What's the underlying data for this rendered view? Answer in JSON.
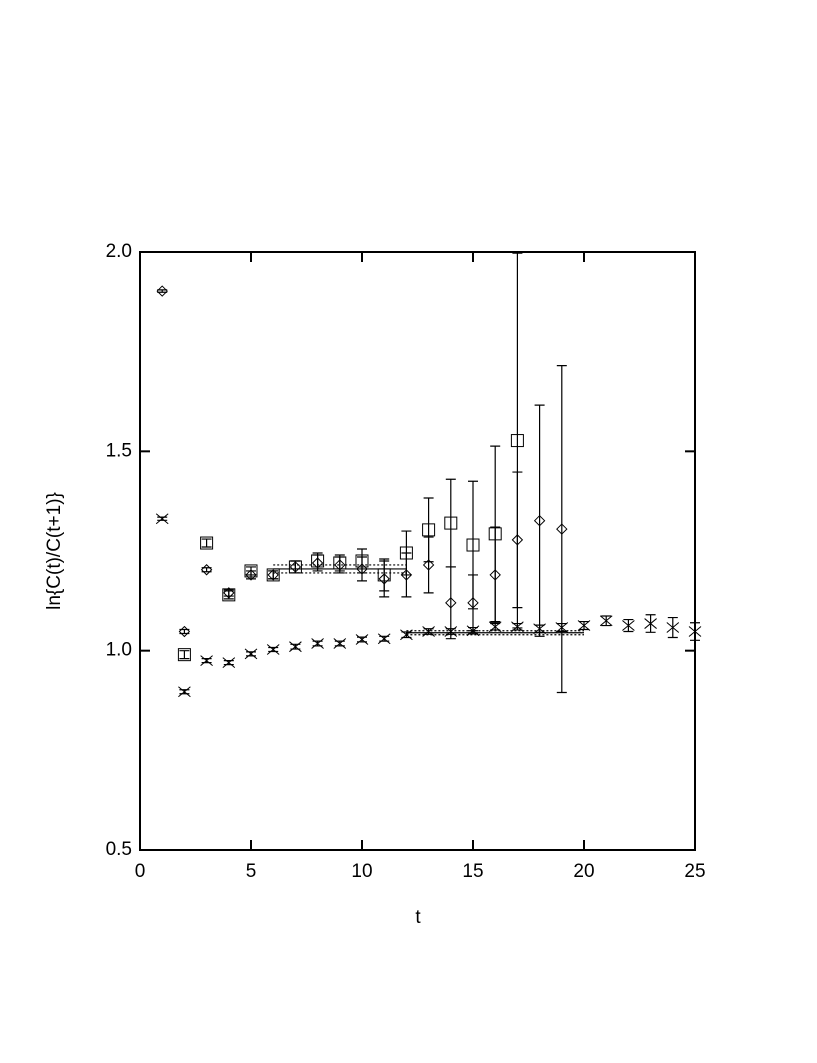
{
  "chart_data": {
    "type": "scatter",
    "x_label": "t",
    "y_label": "ln{C(t)/C(t+1)}",
    "xlim": [
      0,
      25
    ],
    "xticks": [
      0,
      5,
      10,
      15,
      20,
      25
    ],
    "ylim": [
      0.5,
      2.0
    ],
    "yticks": [
      0.5,
      {
        "value": 1.0,
        "label": "1.0"
      },
      1.5,
      {
        "value": 2.0,
        "label": "2.0"
      }
    ],
    "color": "#000000",
    "series": [
      {
        "marker": "diamond",
        "x": [
          1,
          2,
          3,
          4,
          5,
          6,
          7,
          8,
          9,
          10,
          11,
          12,
          13,
          14,
          15,
          16,
          17,
          18,
          19
        ],
        "values": [
          1.902,
          1.048,
          1.203,
          1.145,
          1.19,
          1.19,
          1.21,
          1.22,
          1.215,
          1.205,
          1.18,
          1.19,
          1.215,
          1.12,
          1.12,
          1.19,
          1.278,
          1.326,
          1.305
        ],
        "errors": [
          0.003,
          0.005,
          0.005,
          0.008,
          0.01,
          0.01,
          0.015,
          0.02,
          0.02,
          0.03,
          0.045,
          0.055,
          0.07,
          0.09,
          0.07,
          0.12,
          0.17,
          0.29,
          0.41
        ]
      },
      {
        "marker": "square",
        "x": [
          2,
          3,
          4,
          5,
          6,
          7,
          8,
          9,
          10,
          11,
          12,
          13,
          14,
          15,
          16,
          17
        ],
        "values": [
          0.99,
          1.27,
          1.14,
          1.2,
          1.19,
          1.21,
          1.225,
          1.22,
          1.225,
          1.19,
          1.245,
          1.303,
          1.32,
          1.265,
          1.293,
          1.527
        ],
        "errors": [
          0.01,
          0.01,
          0.01,
          0.01,
          0.01,
          0.015,
          0.02,
          0.02,
          0.03,
          0.04,
          0.055,
          0.08,
          0.11,
          0.16,
          0.22,
          0.47
        ]
      },
      {
        "marker": "cross",
        "x": [
          1,
          2,
          3,
          4,
          5,
          6,
          7,
          8,
          9,
          10,
          11,
          12,
          13,
          14,
          15,
          16,
          17,
          18,
          19,
          20,
          21,
          22,
          23,
          24,
          25
        ],
        "values": [
          1.331,
          0.897,
          0.975,
          0.97,
          0.992,
          1.003,
          1.01,
          1.018,
          1.018,
          1.028,
          1.03,
          1.04,
          1.048,
          1.048,
          1.05,
          1.06,
          1.06,
          1.055,
          1.058,
          1.063,
          1.075,
          1.063,
          1.068,
          1.058,
          1.048
        ],
        "errors": [
          0.004,
          0.005,
          0.005,
          0.005,
          0.005,
          0.005,
          0.006,
          0.006,
          0.006,
          0.006,
          0.006,
          0.007,
          0.007,
          0.007,
          0.008,
          0.008,
          0.008,
          0.009,
          0.01,
          0.01,
          0.012,
          0.015,
          0.022,
          0.025,
          0.022
        ]
      }
    ],
    "fits": [
      {
        "x": [
          6,
          12
        ],
        "value": 1.205,
        "error": 0.01
      },
      {
        "x": [
          12,
          20
        ],
        "value": 1.045,
        "error": 0.005
      }
    ]
  }
}
